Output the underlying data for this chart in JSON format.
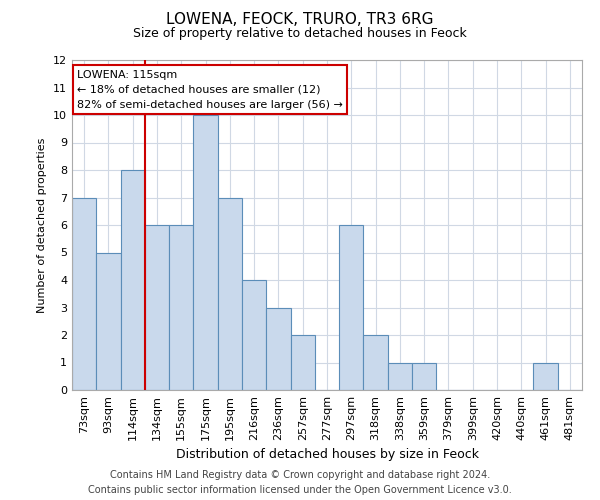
{
  "title": "LOWENA, FEOCK, TRURO, TR3 6RG",
  "subtitle": "Size of property relative to detached houses in Feock",
  "xlabel": "Distribution of detached houses by size in Feock",
  "ylabel": "Number of detached properties",
  "categories": [
    "73sqm",
    "93sqm",
    "114sqm",
    "134sqm",
    "155sqm",
    "175sqm",
    "195sqm",
    "216sqm",
    "236sqm",
    "257sqm",
    "277sqm",
    "297sqm",
    "318sqm",
    "338sqm",
    "359sqm",
    "379sqm",
    "399sqm",
    "420sqm",
    "440sqm",
    "461sqm",
    "481sqm"
  ],
  "values": [
    7,
    5,
    8,
    6,
    6,
    10,
    7,
    4,
    3,
    2,
    0,
    6,
    2,
    1,
    1,
    0,
    0,
    0,
    0,
    1,
    0
  ],
  "bar_color": "#c9d9ec",
  "bar_edge_color": "#5b8db8",
  "highlight_index": 2,
  "highlight_line_color": "#cc0000",
  "ylim": [
    0,
    12
  ],
  "yticks": [
    0,
    1,
    2,
    3,
    4,
    5,
    6,
    7,
    8,
    9,
    10,
    11,
    12
  ],
  "annotation_text": "LOWENA: 115sqm\n← 18% of detached houses are smaller (12)\n82% of semi-detached houses are larger (56) →",
  "annotation_box_color": "#ffffff",
  "annotation_box_edge": "#cc0000",
  "footer_line1": "Contains HM Land Registry data © Crown copyright and database right 2024.",
  "footer_line2": "Contains public sector information licensed under the Open Government Licence v3.0.",
  "grid_color": "#d0d8e4",
  "background_color": "#ffffff",
  "title_fontsize": 11,
  "subtitle_fontsize": 9,
  "ylabel_fontsize": 8,
  "xlabel_fontsize": 9,
  "tick_fontsize": 8,
  "annot_fontsize": 8,
  "footer_fontsize": 7
}
